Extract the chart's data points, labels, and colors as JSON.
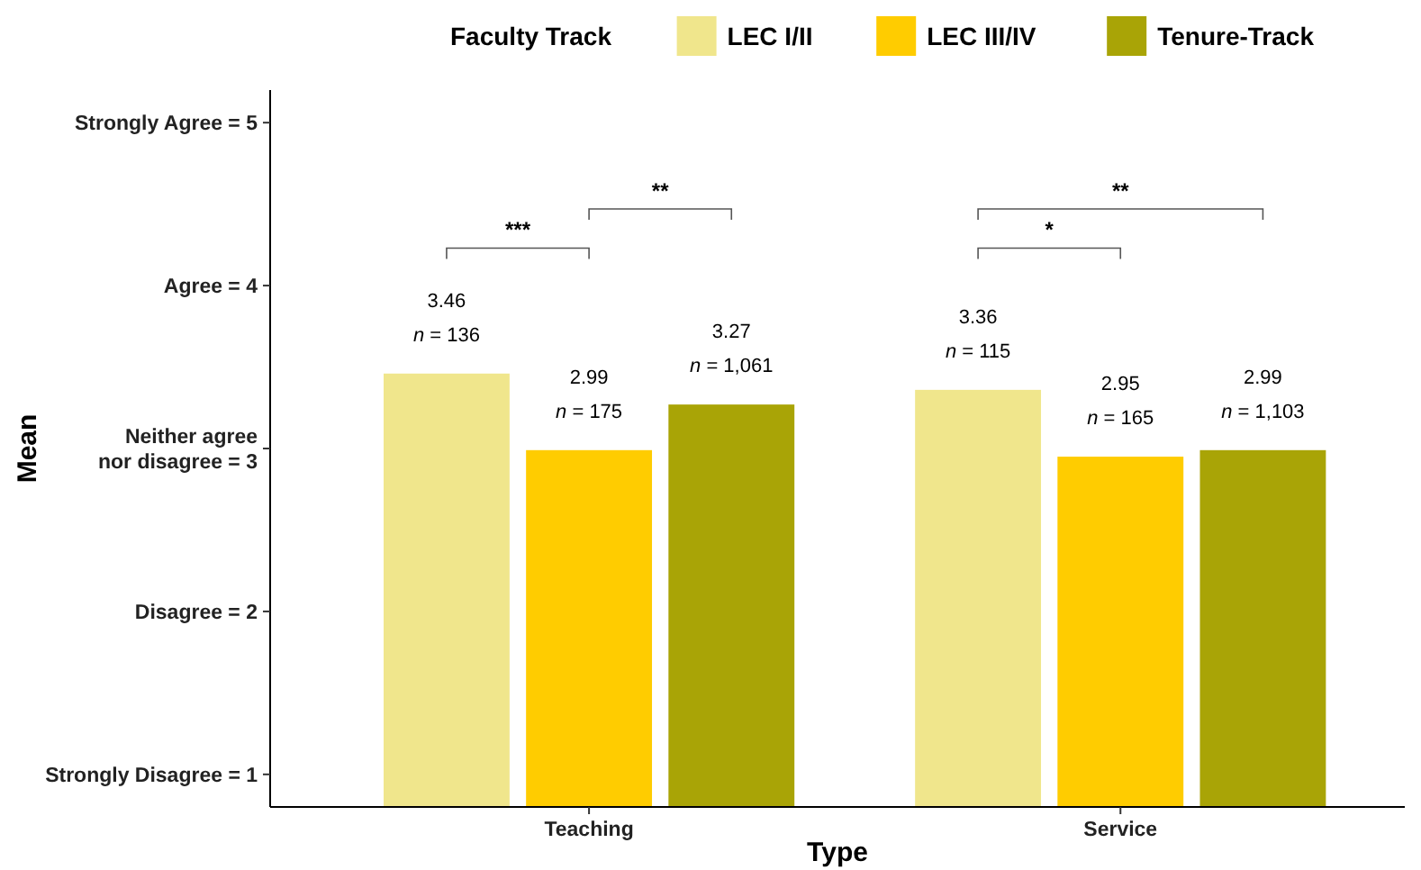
{
  "chart_data": {
    "type": "bar",
    "xlabel": "Type",
    "ylabel": "Mean",
    "legend_title": "Faculty Track",
    "legend": "top",
    "categories": [
      "Teaching",
      "Service"
    ],
    "series": [
      {
        "name": "LEC I/II",
        "color": "#f0e68c",
        "values": [
          3.46,
          3.36
        ]
      },
      {
        "name": "LEC III/IV",
        "color": "#ffcc00",
        "values": [
          2.99,
          2.95
        ]
      },
      {
        "name": "Tenure-Track",
        "color": "#a9a406",
        "values": [
          3.27,
          2.99
        ]
      }
    ],
    "data_labels": true,
    "ylim": [
      0.8,
      5.2
    ],
    "yticks": [
      {
        "value": 1,
        "label": "Strongly Disagree = 1"
      },
      {
        "value": 2,
        "label": "Disagree = 2"
      },
      {
        "value": 3,
        "label": "Neither agree\nnor disagree = 3"
      },
      {
        "value": 4,
        "label": "Agree = 4"
      },
      {
        "value": 5,
        "label": "Strongly Agree = 5"
      }
    ],
    "grid": false,
    "annotations": [
      "n = 136",
      "n = 175",
      "n = 1,061",
      "n = 115",
      "n = 165",
      "n = 1,103",
      "***",
      "**",
      "*",
      "**"
    ]
  }
}
